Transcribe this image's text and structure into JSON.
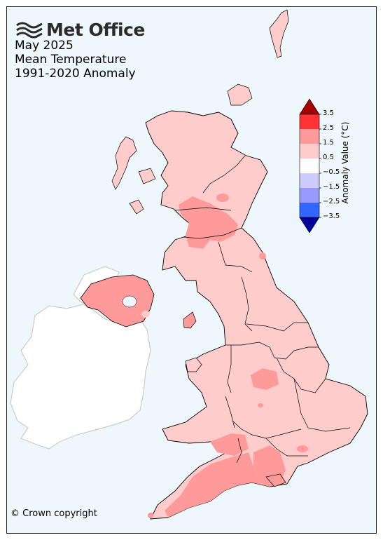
{
  "brand": {
    "name": "Met Office",
    "logo_icon": "met-office-waves-icon"
  },
  "title": {
    "line1": "May 2025",
    "line2": "Mean Temperature",
    "line3": "1991-2020 Anomaly"
  },
  "copyright": "© Crown copyright",
  "legend": {
    "title": "Anomaly Value (°C)",
    "ticks": [
      "3.5",
      "2.5",
      "1.5",
      "0.5",
      "−0.5",
      "−1.5",
      "−2.5",
      "−3.5"
    ],
    "bands": [
      {
        "range": "> 3.5",
        "color": "#a50000"
      },
      {
        "range": "2.5 to 3.5",
        "color": "#ff3333"
      },
      {
        "range": "1.5 to 2.5",
        "color": "#ff9a9a"
      },
      {
        "range": "0.5 to 1.5",
        "color": "#ffcccc"
      },
      {
        "range": "-0.5 to 0.5",
        "color": "#ffffff"
      },
      {
        "range": "-1.5 to -0.5",
        "color": "#ccccff"
      },
      {
        "range": "-2.5 to -1.5",
        "color": "#9a9aff"
      },
      {
        "range": "-3.5 to -2.5",
        "color": "#3366ff"
      },
      {
        "range": "< -3.5",
        "color": "#000099"
      }
    ]
  },
  "colors": {
    "sea": "#eef7fb",
    "ireland": "#ffffff",
    "anomaly_0_5_to_1_5": "#ffcccc",
    "anomaly_1_5_to_2_5": "#ff9a9a"
  }
}
